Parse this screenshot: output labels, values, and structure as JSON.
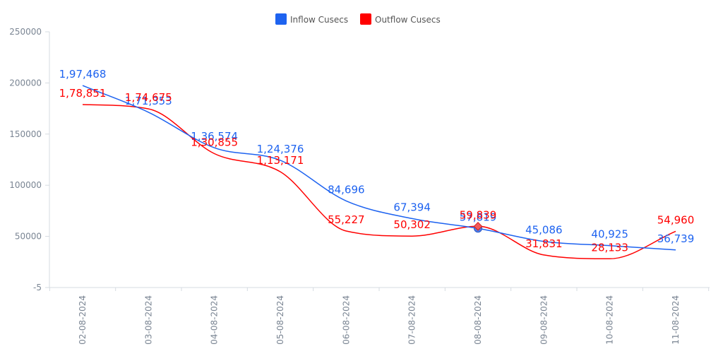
{
  "chart_data": {
    "type": "line",
    "categories": [
      "02-08-2024",
      "03-08-2024",
      "04-08-2024",
      "05-08-2024",
      "06-08-2024",
      "07-08-2024",
      "08-08-2024",
      "09-08-2024",
      "10-08-2024",
      "11-08-2024"
    ],
    "series": [
      {
        "name": "Inflow Cusecs",
        "color": "#1e63f0",
        "values": [
          197468,
          171353,
          136574,
          124376,
          84696,
          67394,
          57819,
          45086,
          40925,
          36739
        ],
        "labels": [
          "1,97,468",
          "1,71,353",
          "1,36,574",
          "1,24,376",
          "84,696",
          "67,394",
          "57,819",
          "45,086",
          "40,925",
          "36,739"
        ]
      },
      {
        "name": "Outflow Cusecs",
        "color": "#ff0000",
        "values": [
          178851,
          174675,
          130855,
          113171,
          55227,
          50302,
          59839,
          31831,
          28133,
          54960
        ],
        "labels": [
          "1,78,851",
          "1,74,675",
          "1,30,855",
          "1,13,171",
          "55,227",
          "50,302",
          "59,839",
          "31,831",
          "28,133",
          "54,960"
        ]
      }
    ],
    "y_ticks": [
      "250000",
      "200000",
      "150000",
      "100000",
      "50000",
      "-5"
    ],
    "ylim": [
      -5,
      250000
    ],
    "legend": "top-center",
    "grid": false,
    "highlighted_index": 6
  }
}
